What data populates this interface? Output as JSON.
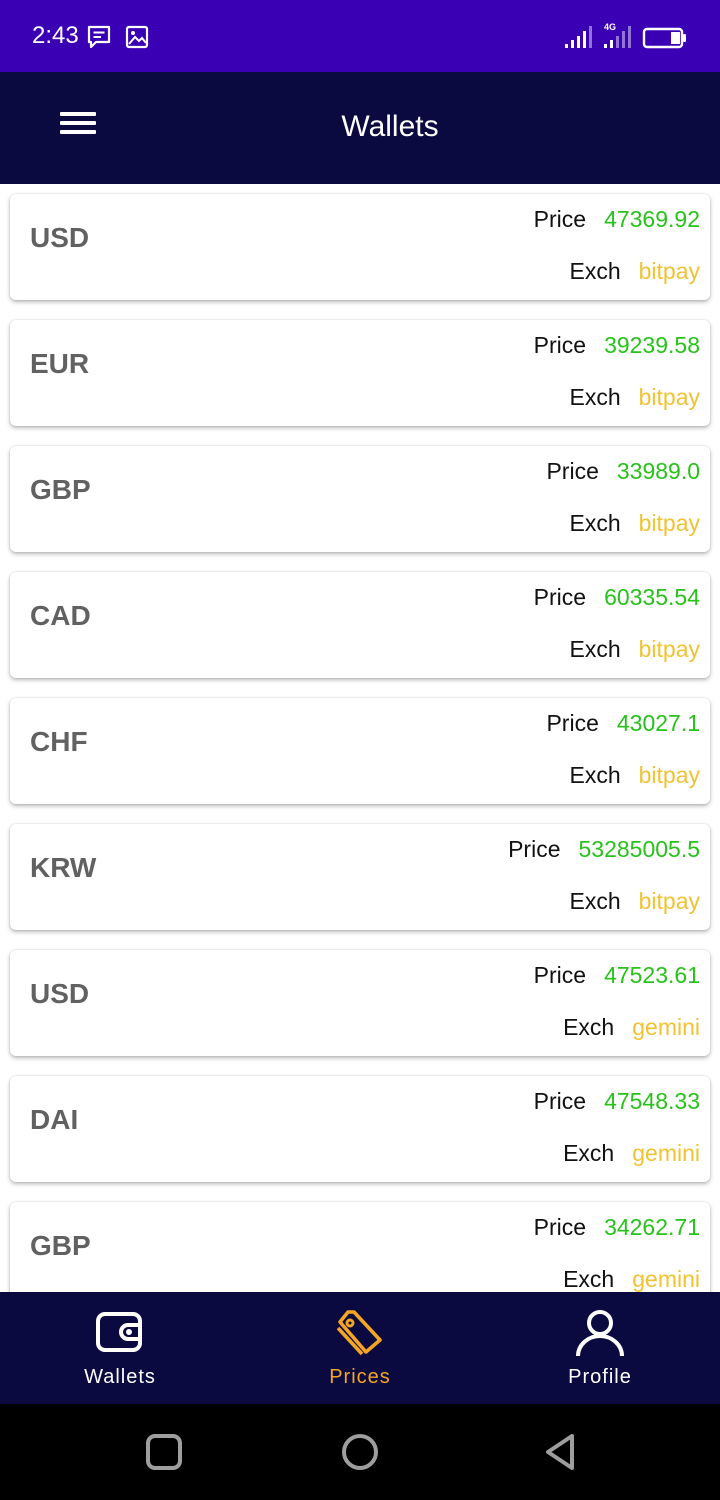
{
  "status_bar": {
    "time": "2:43",
    "left_icons": [
      "message-icon",
      "image-icon"
    ],
    "right_icons": [
      "signal-icon",
      "4g-signal-icon",
      "battery-icon"
    ],
    "network": "4G"
  },
  "app_bar": {
    "title": "Wallets",
    "menu_icon": "hamburger-menu-icon"
  },
  "labels": {
    "price": "Price",
    "exch": "Exch"
  },
  "colors": {
    "status_bar": "#3a00b4",
    "app_bar": "#0b0a40",
    "price": "#27c21a",
    "exchange": "#f1c232",
    "active_nav": "#f5a524"
  },
  "wallets": [
    {
      "currency": "USD",
      "price": "47369.92",
      "exchange": "bitpay"
    },
    {
      "currency": "EUR",
      "price": "39239.58",
      "exchange": "bitpay"
    },
    {
      "currency": "GBP",
      "price": "33989.0",
      "exchange": "bitpay"
    },
    {
      "currency": "CAD",
      "price": "60335.54",
      "exchange": "bitpay"
    },
    {
      "currency": "CHF",
      "price": "43027.1",
      "exchange": "bitpay"
    },
    {
      "currency": "KRW",
      "price": "53285005.5",
      "exchange": "bitpay"
    },
    {
      "currency": "USD",
      "price": "47523.61",
      "exchange": "gemini"
    },
    {
      "currency": "DAI",
      "price": "47548.33",
      "exchange": "gemini"
    },
    {
      "currency": "GBP",
      "price": "34262.71",
      "exchange": "gemini"
    }
  ],
  "bottom_nav": {
    "items": [
      {
        "label": "Wallets",
        "icon": "wallet-icon",
        "active": false
      },
      {
        "label": "Prices",
        "icon": "price-tag-icon",
        "active": true
      },
      {
        "label": "Profile",
        "icon": "user-icon",
        "active": false
      }
    ]
  },
  "system_nav": [
    "recent-apps-icon",
    "home-icon",
    "back-icon"
  ]
}
